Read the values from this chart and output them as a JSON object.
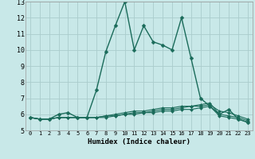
{
  "xlabel": "Humidex (Indice chaleur)",
  "bg_color": "#c8e8e8",
  "grid_color": "#aacccc",
  "line_color": "#1a6b5a",
  "xlim": [
    -0.5,
    23.5
  ],
  "ylim": [
    5,
    13
  ],
  "yticks": [
    5,
    6,
    7,
    8,
    9,
    10,
    11,
    12,
    13
  ],
  "xticks": [
    0,
    1,
    2,
    3,
    4,
    5,
    6,
    7,
    8,
    9,
    10,
    11,
    12,
    13,
    14,
    15,
    16,
    17,
    18,
    19,
    20,
    21,
    22,
    23
  ],
  "series": [
    [
      5.8,
      5.7,
      5.7,
      6.0,
      6.1,
      5.8,
      5.8,
      7.5,
      9.9,
      11.5,
      13.0,
      10.0,
      11.5,
      10.5,
      10.3,
      10.0,
      12.0,
      9.5,
      7.0,
      6.5,
      6.0,
      6.3,
      5.7,
      5.5
    ],
    [
      5.8,
      5.7,
      5.7,
      5.8,
      5.8,
      5.8,
      5.8,
      5.8,
      5.8,
      5.9,
      6.0,
      6.1,
      6.1,
      6.2,
      6.3,
      6.3,
      6.4,
      6.5,
      6.6,
      6.7,
      6.0,
      5.9,
      5.8,
      5.6
    ],
    [
      5.8,
      5.7,
      5.7,
      5.8,
      5.8,
      5.8,
      5.8,
      5.8,
      5.9,
      6.0,
      6.1,
      6.2,
      6.2,
      6.3,
      6.4,
      6.4,
      6.5,
      6.5,
      6.5,
      6.6,
      6.2,
      6.1,
      5.9,
      5.7
    ],
    [
      5.8,
      5.7,
      5.7,
      5.8,
      5.8,
      5.8,
      5.8,
      5.8,
      5.9,
      5.9,
      6.0,
      6.0,
      6.1,
      6.1,
      6.2,
      6.2,
      6.3,
      6.3,
      6.4,
      6.5,
      5.9,
      5.8,
      5.7,
      5.5
    ]
  ],
  "xlabel_fontsize": 6.5,
  "xtick_fontsize": 5.0,
  "ytick_fontsize": 6.0,
  "linewidth_main": 1.0,
  "linewidth_other": 0.8,
  "markersize_main": 2.5,
  "markersize_other": 2.0
}
